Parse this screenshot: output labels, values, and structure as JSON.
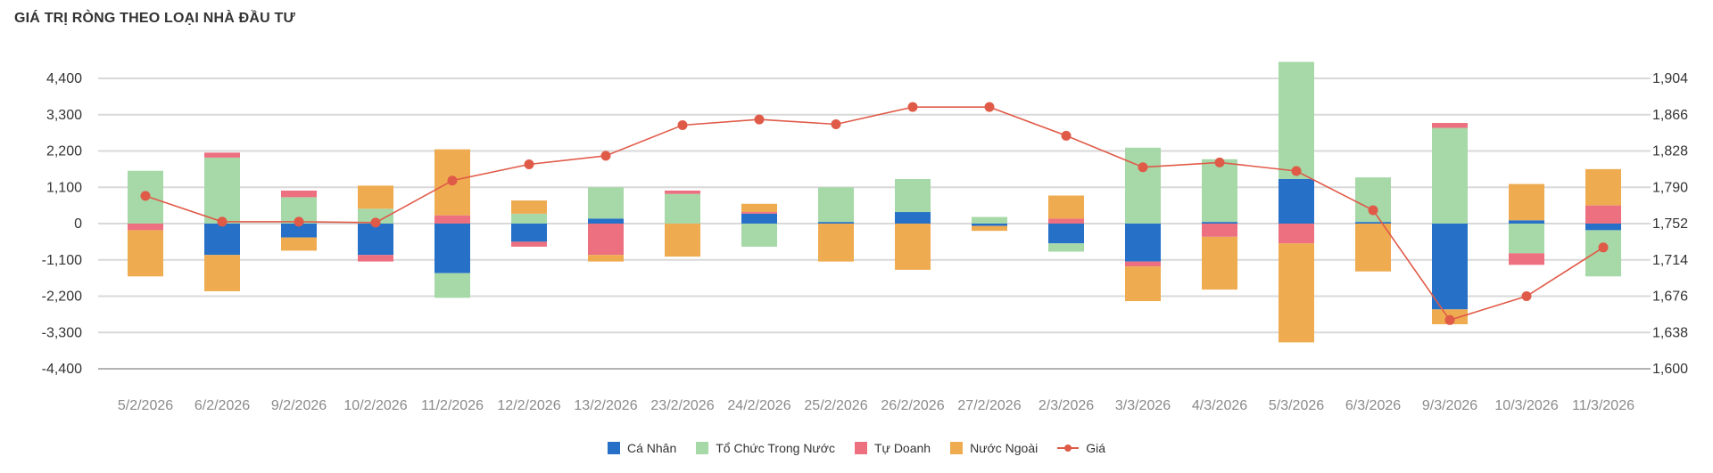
{
  "title": "GIÁ TRỊ RÒNG THEO LOẠI NHÀ ĐẦU TƯ",
  "colors": {
    "ca_nhan": "#2670c8",
    "to_chuc": "#a6d8a8",
    "tu_doanh": "#ec7080",
    "nuoc_ngoai": "#eeab50",
    "gia": "#e05a48"
  },
  "chart_data": {
    "type": "bar",
    "stacked": true,
    "categories": [
      "5/2/2026",
      "6/2/2026",
      "9/2/2026",
      "10/2/2026",
      "11/2/2026",
      "12/2/2026",
      "13/2/2026",
      "23/2/2026",
      "24/2/2026",
      "25/2/2026",
      "26/2/2026",
      "27/2/2026",
      "2/3/2026",
      "3/3/2026",
      "4/3/2026",
      "5/3/2026",
      "6/3/2026",
      "9/3/2026",
      "10/3/2026",
      "11/3/2026"
    ],
    "series": [
      {
        "name": "Cá Nhân",
        "color": "#2670c8",
        "values": [
          0,
          -950,
          -420,
          -950,
          -1500,
          -550,
          150,
          0,
          300,
          50,
          350,
          -70,
          -600,
          -1150,
          50,
          1350,
          50,
          -2600,
          100,
          -200
        ]
      },
      {
        "name": "Tổ Chức Trong Nước",
        "color": "#a6d8a8",
        "values": [
          1600,
          2000,
          800,
          450,
          -750,
          300,
          950,
          900,
          -700,
          1050,
          1000,
          200,
          -250,
          2300,
          1900,
          3550,
          1350,
          2900,
          -900,
          -1400
        ]
      },
      {
        "name": "Tự Doanh",
        "color": "#ec7080",
        "values": [
          -200,
          150,
          200,
          -200,
          250,
          -150,
          -950,
          100,
          50,
          0,
          0,
          0,
          150,
          -150,
          -400,
          -600,
          0,
          150,
          -350,
          550
        ]
      },
      {
        "name": "Nước Ngoài",
        "color": "#eeab50",
        "values": [
          -1400,
          -1100,
          -400,
          700,
          2000,
          400,
          -200,
          -1000,
          250,
          -1150,
          -1400,
          -150,
          700,
          -1050,
          -1600,
          -3000,
          -1450,
          -450,
          1100,
          1100
        ]
      }
    ],
    "line": {
      "name": "Giá",
      "color": "#e05a48",
      "axis": "right",
      "values": [
        1781,
        1754,
        1754,
        1753,
        1797,
        1814,
        1823,
        1855,
        1861,
        1856,
        1874,
        1874,
        1844,
        1811,
        1816,
        1807,
        1766,
        1651,
        1676,
        1727
      ]
    },
    "ylim": [
      -4400,
      4400
    ],
    "yticks": [
      "4,400",
      "3,300",
      "2,200",
      "1,100",
      "0",
      "-1,100",
      "-2,200",
      "-3,300",
      "-4,400"
    ],
    "ylim_right": [
      1600,
      1904
    ],
    "yticks_right": [
      "1,904",
      "1,866",
      "1,828",
      "1,790",
      "1,752",
      "1,714",
      "1,676",
      "1,638",
      "1,600"
    ],
    "grid": true,
    "legend": "bottom"
  }
}
